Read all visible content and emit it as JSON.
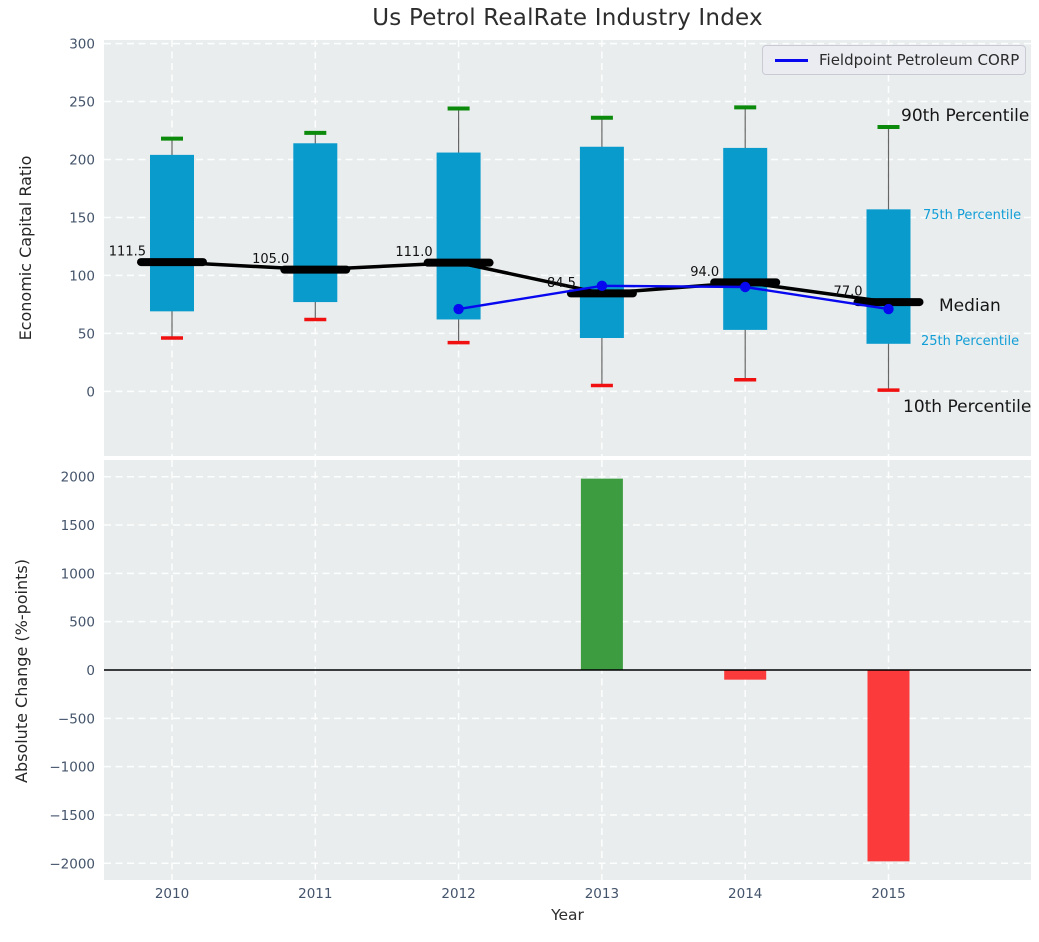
{
  "figure": {
    "title": "Us Petrol RealRate Industry Index",
    "xlabel": "Year"
  },
  "legend": {
    "label": "Fieldpoint Petroleum CORP"
  },
  "colors": {
    "plot_background": "#e9edee",
    "gridline": "#ffffff",
    "box_fill": "#0a9bcd",
    "whisker_line": "#666666",
    "cap_90th": "#0b8a0b",
    "cap_10th": "#f01010",
    "median_line": "#000000",
    "company_line": "#0808f0",
    "bar_positive": "#3d9c40",
    "bar_negative": "#fb3b3b",
    "tick_label": "#44546b",
    "zero_line": "#000000"
  },
  "chart_data": [
    {
      "type": "box",
      "title": "Us Petrol RealRate Industry Index",
      "ylabel": "Economic Capital Ratio",
      "categories": [
        "2010",
        "2011",
        "2012",
        "2013",
        "2014",
        "2015"
      ],
      "yticks": [
        0,
        50,
        100,
        150,
        200,
        250,
        300
      ],
      "ytick_labels": [
        "0",
        "50",
        "100",
        "150",
        "200",
        "250",
        "300"
      ],
      "ylim": [
        -55.8,
        303.1
      ],
      "grid": true,
      "legend_position": "upper right",
      "series": [
        {
          "name": "90th Percentile",
          "values": [
            218,
            223,
            244,
            236,
            245,
            228
          ]
        },
        {
          "name": "75th Percentile",
          "values": [
            204,
            214,
            206,
            211,
            210,
            157
          ]
        },
        {
          "name": "Median",
          "values": [
            111.5,
            105.0,
            111.0,
            84.5,
            94.0,
            77.0
          ]
        },
        {
          "name": "25th Percentile",
          "values": [
            69,
            77,
            62,
            46,
            53,
            41
          ]
        },
        {
          "name": "10th Percentile",
          "values": [
            46,
            62,
            42,
            5,
            10,
            1
          ]
        },
        {
          "name": "Fieldpoint Petroleum CORP",
          "categories": [
            "2012",
            "2013",
            "2014",
            "2015"
          ],
          "values": [
            71,
            91,
            90,
            71
          ]
        }
      ],
      "median_labels": [
        "111.5",
        "105.0",
        "111.0",
        "84.5",
        "94.0",
        "77.0"
      ],
      "annotations": {
        "p90": "90th Percentile",
        "p75": "75th Percentile",
        "median": "Median",
        "p25": "25th Percentile",
        "p10": "10th Percentile"
      }
    },
    {
      "type": "bar",
      "ylabel": "Absolute Change (%-points)",
      "xlabel": "Year",
      "categories": [
        "2010",
        "2011",
        "2012",
        "2013",
        "2014",
        "2015"
      ],
      "values": [
        null,
        null,
        null,
        1980,
        -100,
        -1980
      ],
      "yticks": [
        -2000,
        -1500,
        -1000,
        -500,
        0,
        500,
        1000,
        1500,
        2000
      ],
      "ytick_labels": [
        "−2000",
        "−1500",
        "−1000",
        "−500",
        "0",
        "500",
        "1000",
        "1500",
        "2000"
      ],
      "ylim": [
        -2173,
        2173
      ],
      "grid": true
    }
  ]
}
